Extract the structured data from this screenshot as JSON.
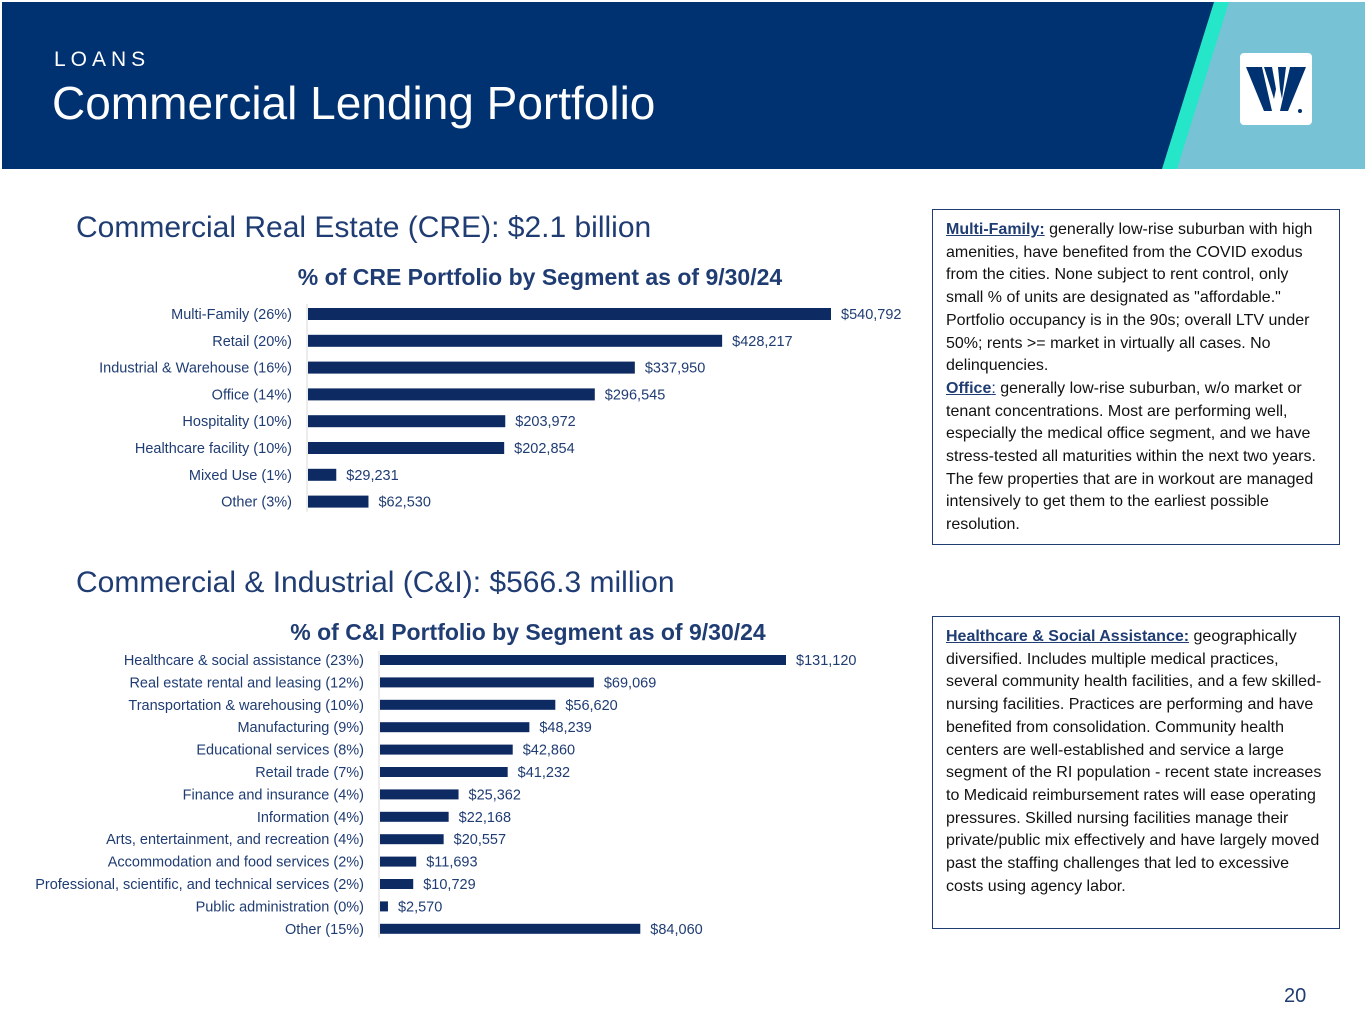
{
  "header": {
    "eyebrow": "LOANS",
    "title": "Commercial Lending Portfolio"
  },
  "colors": {
    "navy": "#003170",
    "teal": "#25e6c8",
    "light_blue": "#78c2d6",
    "bar": "#0d2a63"
  },
  "logo": {
    "icon": "bank-logo-icon"
  },
  "cre": {
    "section_title": "Commercial Real Estate (CRE): $2.1 billion"
  },
  "cni": {
    "section_title": "Commercial & Industrial (C&I): $566.3 million"
  },
  "chart_data": [
    {
      "type": "bar",
      "orientation": "horizontal",
      "title": "% of CRE Portfolio by Segment as of 9/30/24",
      "categories": [
        "Multi-Family (26%)",
        "Retail (20%)",
        "Industrial & Warehouse (16%)",
        "Office (14%)",
        "Hospitality (10%)",
        "Healthcare facility (10%)",
        "Mixed Use (1%)",
        "Other (3%)"
      ],
      "values": [
        540792,
        428217,
        337950,
        296545,
        203972,
        202854,
        29231,
        62530
      ],
      "data_labels": [
        "$540,792",
        "$428,217",
        "$337,950",
        "$296,545",
        "$203,972",
        "$202,854",
        "$29,231",
        "$62,530"
      ],
      "xlim": [
        0,
        540792
      ],
      "grid": false,
      "legend": "none"
    },
    {
      "type": "bar",
      "orientation": "horizontal",
      "title": "% of C&I Portfolio by Segment as of 9/30/24",
      "categories": [
        "Healthcare & social assistance (23%)",
        "Real estate rental and leasing (12%)",
        "Transportation & warehousing (10%)",
        "Manufacturing  (9%)",
        "Educational services (8%)",
        "Retail trade (7%)",
        "Finance and insurance (4%)",
        "Information (4%)",
        "Arts, entertainment, and recreation (4%)",
        "Accommodation and food services (2%)",
        "Professional, scientific, and technical services (2%)",
        "Public administration (0%)",
        "Other (15%)"
      ],
      "values": [
        131120,
        69069,
        56620,
        48239,
        42860,
        41232,
        25362,
        22168,
        20557,
        11693,
        10729,
        2570,
        84060
      ],
      "data_labels": [
        "$131,120",
        "$69,069",
        "$56,620",
        "$48,239",
        "$42,860",
        "$41,232",
        "$25,362",
        "$22,168",
        "$20,557",
        "$11,693",
        "$10,729",
        "$2,570",
        "$84,060"
      ],
      "xlim": [
        0,
        131120
      ],
      "grid": false,
      "legend": "none"
    }
  ],
  "notes": {
    "multifamily": {
      "label": "Multi-Family:",
      "text": " generally low-rise suburban with high amenities, have benefited from the COVID exodus from the cities. None subject to rent control, only small % of units are designated as \"affordable.\" Portfolio occupancy is in the 90s; overall LTV under 50%; rents >= market in virtually all cases. No delinquencies."
    },
    "office": {
      "label": "Office",
      "sep": ":",
      "text": " generally low-rise suburban, w/o market or tenant concentrations. Most are performing well, especially the medical office segment, and we have stress-tested all maturities within the next two years. The few properties that are in workout are managed intensively to get them to the earliest possible resolution."
    },
    "healthcare": {
      "label": "Healthcare & Social Assistance:",
      "text": " geographically diversified.  Includes multiple medical practices, several community health facilities, and a few  skilled-nursing facilities. Practices are performing and have benefited from consolidation. Community health centers are well-established and service a large segment of the RI population - recent state increases to Medicaid reimbursement rates will ease operating pressures. Skilled nursing facilities manage their private/public mix effectively and have largely moved past the staffing challenges that led to excessive costs using agency labor."
    }
  },
  "page_number": "20"
}
